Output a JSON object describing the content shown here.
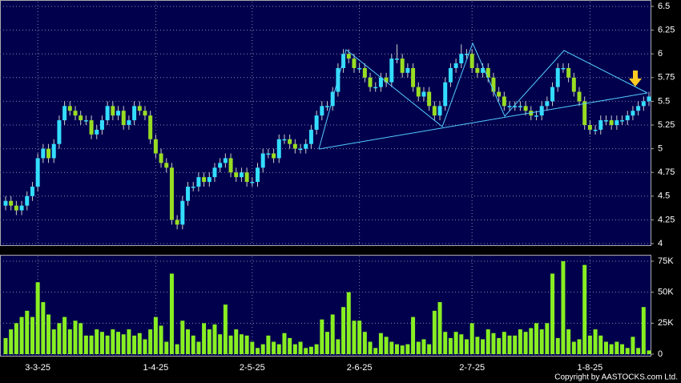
{
  "chart_data": [
    {
      "type": "candlestick",
      "categories": [
        null,
        null,
        null,
        null,
        null,
        null,
        "3-3-25",
        null,
        null,
        null,
        null,
        null,
        null,
        null,
        null,
        null,
        null,
        null,
        null,
        null,
        null,
        null,
        null,
        null,
        null,
        null,
        null,
        null,
        "1-4-25",
        null,
        null,
        null,
        null,
        null,
        null,
        null,
        null,
        null,
        null,
        null,
        null,
        null,
        null,
        null,
        null,
        null,
        "2-5-25",
        null,
        null,
        null,
        null,
        null,
        null,
        null,
        null,
        null,
        null,
        null,
        null,
        null,
        null,
        null,
        null,
        null,
        null,
        null,
        "2-6-25",
        null,
        null,
        null,
        null,
        null,
        null,
        null,
        null,
        null,
        null,
        null,
        null,
        null,
        null,
        null,
        null,
        null,
        null,
        null,
        null,
        "2-7-25",
        null,
        null,
        null,
        null,
        null,
        null,
        null,
        null,
        null,
        null,
        null,
        null,
        null,
        null,
        null,
        null,
        null,
        null,
        null,
        null,
        null,
        "1-8-25",
        null,
        null,
        null,
        null,
        null,
        null,
        null,
        null,
        null,
        null,
        null
      ],
      "open": [
        4.4,
        4.45,
        4.4,
        4.35,
        4.4,
        4.5,
        4.6,
        4.9,
        5.0,
        4.9,
        5.05,
        5.3,
        5.45,
        5.4,
        5.35,
        5.3,
        5.3,
        5.15,
        5.2,
        5.3,
        5.45,
        5.35,
        5.4,
        5.25,
        5.3,
        5.45,
        5.4,
        5.35,
        5.1,
        4.95,
        4.85,
        4.8,
        4.25,
        4.2,
        4.45,
        4.6,
        4.6,
        4.7,
        4.65,
        4.7,
        4.8,
        4.85,
        4.9,
        4.75,
        4.7,
        4.75,
        4.65,
        4.65,
        4.8,
        4.95,
        4.95,
        4.9,
        5.1,
        5.1,
        5.05,
        5.0,
        5.0,
        5.05,
        5.2,
        5.35,
        5.45,
        5.45,
        5.6,
        5.85,
        6.0,
        5.95,
        5.85,
        5.85,
        5.75,
        5.65,
        5.65,
        5.75,
        5.7,
        5.95,
        5.95,
        5.8,
        5.85,
        5.65,
        5.55,
        5.6,
        5.45,
        5.35,
        5.45,
        5.7,
        5.85,
        5.9,
        6.0,
        6.0,
        5.85,
        5.8,
        5.85,
        5.75,
        5.6,
        5.55,
        5.45,
        5.45,
        5.45,
        5.45,
        5.4,
        5.35,
        5.35,
        5.45,
        5.5,
        5.65,
        5.85,
        5.85,
        5.75,
        5.6,
        5.5,
        5.25,
        5.2,
        5.2,
        5.3,
        5.3,
        5.25,
        5.3,
        5.3,
        5.35,
        5.4,
        5.45,
        5.5
      ],
      "high": [
        4.5,
        4.5,
        4.45,
        4.45,
        4.55,
        4.65,
        4.95,
        5.05,
        5.05,
        5.1,
        5.35,
        5.5,
        5.5,
        5.45,
        5.4,
        5.35,
        5.35,
        5.25,
        5.35,
        5.5,
        5.5,
        5.45,
        5.45,
        5.35,
        5.5,
        5.5,
        5.45,
        5.4,
        5.15,
        5.0,
        4.9,
        4.85,
        4.3,
        4.5,
        4.65,
        4.65,
        4.75,
        4.75,
        4.75,
        4.85,
        4.9,
        4.95,
        4.95,
        4.8,
        4.8,
        4.8,
        4.7,
        4.85,
        5.0,
        5.0,
        5.0,
        5.15,
        5.15,
        5.15,
        5.1,
        5.05,
        5.1,
        5.25,
        5.4,
        5.5,
        5.5,
        5.65,
        5.9,
        6.05,
        6.05,
        6.0,
        5.9,
        5.9,
        5.8,
        5.7,
        5.8,
        5.8,
        6.0,
        6.1,
        6.0,
        5.9,
        5.9,
        5.7,
        5.65,
        5.65,
        5.5,
        5.5,
        5.75,
        5.9,
        5.95,
        6.1,
        6.05,
        6.05,
        5.9,
        5.9,
        5.9,
        5.8,
        5.65,
        5.6,
        5.5,
        5.5,
        5.5,
        5.5,
        5.45,
        5.4,
        5.5,
        5.55,
        5.7,
        5.9,
        5.9,
        5.9,
        5.8,
        5.65,
        5.55,
        5.3,
        5.25,
        5.35,
        5.35,
        5.35,
        5.35,
        5.35,
        5.4,
        5.45,
        5.5,
        5.55,
        5.6
      ],
      "low": [
        4.35,
        4.35,
        4.3,
        4.3,
        4.35,
        4.45,
        4.55,
        4.85,
        4.85,
        4.85,
        5.0,
        5.25,
        5.35,
        5.3,
        5.25,
        5.25,
        5.1,
        5.1,
        5.15,
        5.25,
        5.3,
        5.3,
        5.2,
        5.2,
        5.25,
        5.35,
        5.3,
        5.05,
        4.9,
        4.8,
        4.75,
        4.2,
        4.15,
        4.15,
        4.4,
        4.55,
        4.55,
        4.6,
        4.6,
        4.65,
        4.75,
        4.8,
        4.7,
        4.65,
        4.65,
        4.6,
        4.6,
        4.6,
        4.75,
        4.9,
        4.85,
        4.85,
        5.05,
        5.0,
        4.95,
        4.95,
        4.95,
        5.0,
        5.15,
        5.3,
        5.4,
        5.4,
        5.55,
        5.8,
        5.9,
        5.8,
        5.8,
        5.7,
        5.6,
        5.6,
        5.6,
        5.65,
        5.65,
        5.9,
        5.75,
        5.75,
        5.6,
        5.5,
        5.5,
        5.4,
        5.3,
        5.3,
        5.4,
        5.65,
        5.8,
        5.85,
        5.95,
        5.8,
        5.75,
        5.75,
        5.7,
        5.55,
        5.5,
        5.4,
        5.4,
        5.4,
        5.4,
        5.35,
        5.3,
        5.3,
        5.3,
        5.4,
        5.45,
        5.6,
        5.8,
        5.7,
        5.55,
        5.45,
        5.2,
        5.15,
        5.15,
        5.15,
        5.25,
        5.2,
        5.2,
        5.25,
        5.25,
        5.3,
        5.35,
        5.4,
        5.45
      ],
      "close": [
        4.45,
        4.4,
        4.35,
        4.4,
        4.5,
        4.6,
        4.9,
        5.0,
        4.9,
        5.05,
        5.3,
        5.45,
        5.4,
        5.35,
        5.3,
        5.3,
        5.15,
        5.2,
        5.3,
        5.45,
        5.35,
        5.4,
        5.25,
        5.3,
        5.45,
        5.4,
        5.35,
        5.1,
        4.95,
        4.85,
        4.8,
        4.25,
        4.2,
        4.45,
        4.6,
        4.6,
        4.7,
        4.65,
        4.7,
        4.8,
        4.85,
        4.9,
        4.75,
        4.7,
        4.75,
        4.65,
        4.65,
        4.8,
        4.95,
        4.95,
        4.9,
        5.1,
        5.1,
        5.05,
        5.0,
        5.0,
        5.05,
        5.2,
        5.35,
        5.45,
        5.45,
        5.6,
        5.85,
        6.0,
        5.95,
        5.85,
        5.85,
        5.75,
        5.65,
        5.65,
        5.75,
        5.7,
        5.95,
        5.95,
        5.8,
        5.85,
        5.65,
        5.55,
        5.6,
        5.45,
        5.35,
        5.45,
        5.7,
        5.85,
        5.9,
        6.0,
        6.0,
        5.85,
        5.8,
        5.85,
        5.75,
        5.6,
        5.55,
        5.45,
        5.45,
        5.45,
        5.45,
        5.4,
        5.35,
        5.35,
        5.45,
        5.5,
        5.65,
        5.85,
        5.85,
        5.75,
        5.6,
        5.5,
        5.25,
        5.2,
        5.2,
        5.3,
        5.3,
        5.25,
        5.3,
        5.3,
        5.35,
        5.4,
        5.45,
        5.5,
        5.55
      ],
      "up_color": "#33ddff",
      "down_color": "#99dd22",
      "ylim": [
        4,
        6.5
      ],
      "yticks": [
        4,
        4.25,
        4.5,
        4.75,
        5,
        5.25,
        5.5,
        5.75,
        6,
        6.25,
        6.5
      ],
      "grid": true
    },
    {
      "type": "bar",
      "values": [
        13000,
        20000,
        25000,
        30000,
        35000,
        30000,
        58000,
        42000,
        32000,
        20000,
        25000,
        30000,
        20000,
        27000,
        25000,
        15000,
        15000,
        20000,
        18000,
        15000,
        20000,
        18000,
        16000,
        20000,
        15000,
        17000,
        12000,
        20000,
        30000,
        23000,
        10000,
        65000,
        8000,
        27000,
        20000,
        15000,
        10000,
        25000,
        20000,
        24000,
        16000,
        40000,
        15000,
        20000,
        16000,
        15000,
        10000,
        5000,
        8000,
        15000,
        10000,
        8000,
        17000,
        13000,
        8000,
        10000,
        5000,
        6000,
        8000,
        28000,
        18000,
        32000,
        12000,
        38000,
        50000,
        27000,
        27000,
        18000,
        10000,
        5000,
        17000,
        14000,
        10000,
        8000,
        7000,
        8000,
        30000,
        10000,
        12000,
        8000,
        35000,
        42000,
        18000,
        13000,
        18000,
        16000,
        12000,
        25000,
        14000,
        12000,
        20000,
        17000,
        13000,
        18000,
        15000,
        15000,
        20000,
        18000,
        21000,
        25000,
        20000,
        25000,
        65000,
        13000,
        75000,
        20000,
        10000,
        12000,
        72000,
        15000,
        20000,
        15000,
        10000,
        8000,
        10000,
        8000,
        5000,
        14000,
        5000,
        38000,
        3000
      ],
      "color": "#88ee22",
      "ylim": [
        0,
        75000
      ],
      "yticks": [
        {
          "value": 0,
          "label": "0"
        },
        {
          "value": 25000,
          "label": "25K"
        },
        {
          "value": 50000,
          "label": "50K"
        },
        {
          "value": 75000,
          "label": "75K"
        }
      ],
      "grid": true
    }
  ],
  "copyright": "Copyright by AASTOCKS.com Ltd."
}
